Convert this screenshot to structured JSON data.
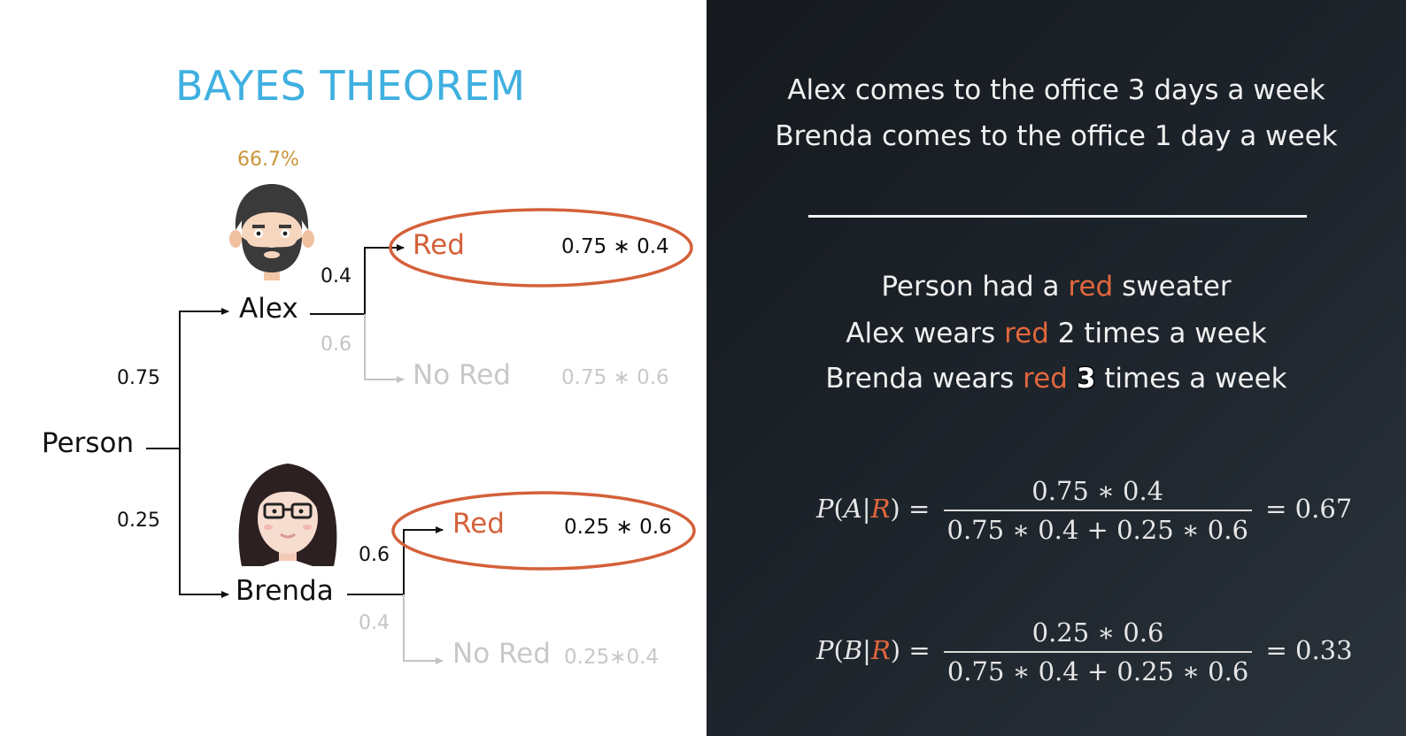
{
  "title": "BAYES THEOREM",
  "alex_posterior_label": "66.7%",
  "tree": {
    "root": "Person",
    "alex": {
      "name": "Alex",
      "prior": "0.75",
      "p_red": "0.4",
      "p_nored": "0.6"
    },
    "brenda": {
      "name": "Brenda",
      "prior": "0.25",
      "p_red": "0.6",
      "p_nored": "0.4"
    },
    "outcomes": {
      "red": "Red",
      "nored": "No Red",
      "alex_red_calc": "0.75 ∗ 0.4",
      "alex_nored_calc": "0.75 ∗ 0.6",
      "brenda_red_calc": "0.25 ∗ 0.6",
      "brenda_nored_calc": "0.25∗0.4"
    }
  },
  "facts": {
    "line1": "Alex comes to the office 3 days a week",
    "line2": "Brenda comes to the office 1 day a week",
    "l3_pre": "Person had a ",
    "l3_red": "red",
    "l3_post": " sweater",
    "l4_pre": "Alex wears ",
    "l4_red": "red",
    "l4_post": " 2 times a week",
    "l5_pre": "Brenda wears ",
    "l5_red": "red",
    "l5_num": "3",
    "l5_post": " times a week"
  },
  "equations": {
    "a": {
      "P": "P",
      "lp": "(",
      "event": "A",
      "bar": "|",
      "given": "R",
      "rp": ")",
      "eq": "=",
      "numerator": "0.75 ∗ 0.4",
      "denominator": "0.75 ∗ 0.4 + 0.25 ∗ 0.6",
      "result": "= 0.67"
    },
    "b": {
      "P": "P",
      "lp": "(",
      "event": "B",
      "bar": "|",
      "given": "R",
      "rp": ")",
      "eq": "=",
      "numerator": "0.25 ∗ 0.6",
      "denominator": "0.75 ∗ 0.4 + 0.25 ∗ 0.6",
      "result": "= 0.33"
    }
  },
  "colors": {
    "accent_red": "#d4603a",
    "title_blue": "#3fb0e0",
    "percent_gold": "#c9953a"
  }
}
